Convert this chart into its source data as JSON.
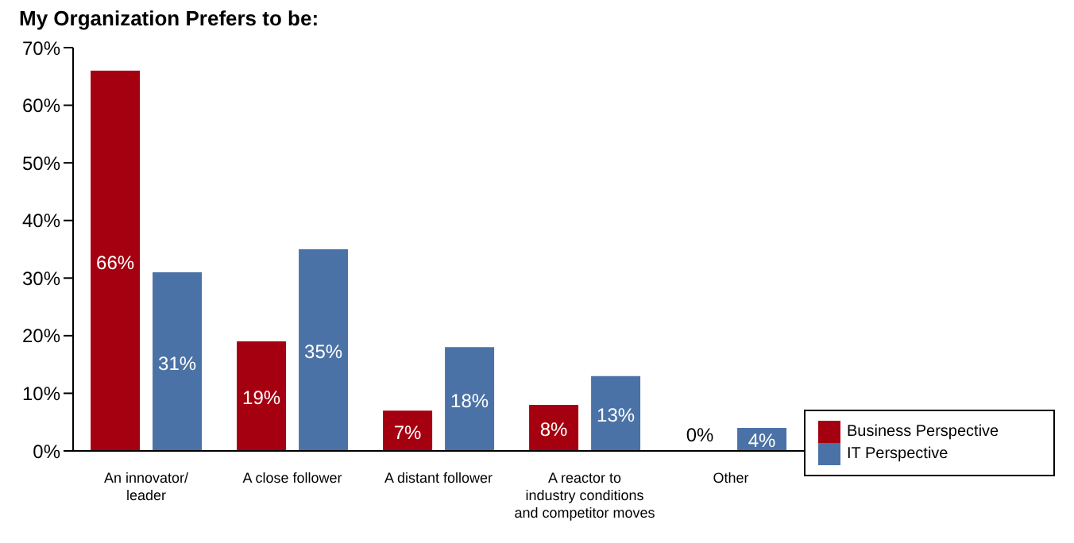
{
  "chart_data": {
    "type": "bar",
    "title": "My Organization Prefers to be:",
    "categories": [
      "An innovator/\nleader",
      "A close follower",
      "A distant follower",
      "A reactor to\nindustry conditions\nand competitor moves",
      "Other"
    ],
    "series": [
      {
        "name": "Business Perspective",
        "color": "#a50010",
        "values": [
          66,
          19,
          7,
          8,
          0
        ],
        "value_labels": [
          "66%",
          "19%",
          "7%",
          "8%",
          "0%"
        ]
      },
      {
        "name": "IT Perspective",
        "color": "#4a72a6",
        "values": [
          31,
          35,
          18,
          13,
          4
        ],
        "value_labels": [
          "31%",
          "35%",
          "18%",
          "13%",
          "4%"
        ]
      }
    ],
    "ylim": [
      0,
      70
    ],
    "yticks": [
      {
        "value": 0,
        "label": "0%"
      },
      {
        "value": 10,
        "label": "10%"
      },
      {
        "value": 20,
        "label": "20%"
      },
      {
        "value": 30,
        "label": "30%"
      },
      {
        "value": 40,
        "label": "40%"
      },
      {
        "value": 50,
        "label": "50%"
      },
      {
        "value": 60,
        "label": "60%"
      },
      {
        "value": 70,
        "label": "70%"
      }
    ],
    "grid": false,
    "legend": "bottom right"
  }
}
